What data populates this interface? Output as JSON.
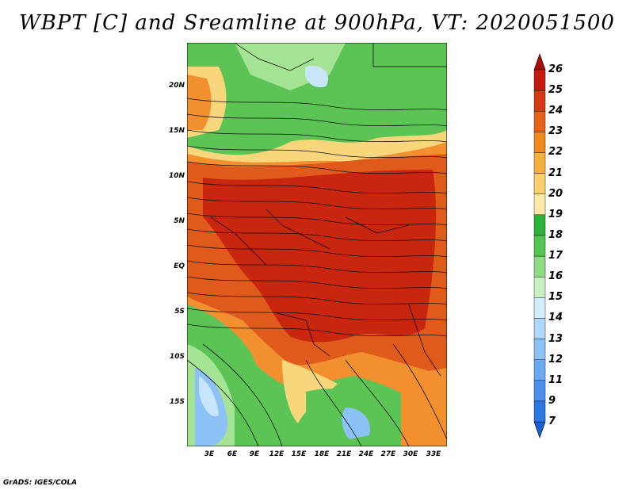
{
  "title": "WBPT [C] and Sreamline at 900hPa, VT: 2020051500",
  "credit": "GrADS: IGES/COLA",
  "axes": {
    "lat_labels": [
      "20N",
      "15N",
      "10N",
      "5N",
      "EQ",
      "5S",
      "10S",
      "15S"
    ],
    "lon_labels": [
      "3E",
      "6E",
      "9E",
      "12E",
      "15E",
      "18E",
      "21E",
      "24E",
      "27E",
      "30E",
      "33E"
    ]
  },
  "colorbar": {
    "levels": [
      "7",
      "9",
      "11",
      "12",
      "13",
      "14",
      "15",
      "16",
      "17",
      "18",
      "19",
      "20",
      "21",
      "22",
      "23",
      "24",
      "25",
      "26"
    ],
    "colors": [
      "#1a5fd6",
      "#2a78e6",
      "#4a92ec",
      "#6aaaf2",
      "#8cc2f6",
      "#aed7fa",
      "#d2ecfc",
      "#c9f0c0",
      "#8fdb84",
      "#55c450",
      "#2fb43a",
      "#fde9a6",
      "#f8cf6c",
      "#f5b03c",
      "#f18a1c",
      "#e8611a",
      "#d63a14",
      "#c31b0e",
      "#a80b08"
    ]
  },
  "map": {
    "fields": {
      "green": "#5cc455",
      "light_green": "#a6e495",
      "yellow": "#f8d77c",
      "orange": "#f29030",
      "red_orange": "#e05a1c",
      "red": "#c9260f",
      "blue": "#8cc2f6",
      "light_blue": "#c8e6fb"
    }
  }
}
